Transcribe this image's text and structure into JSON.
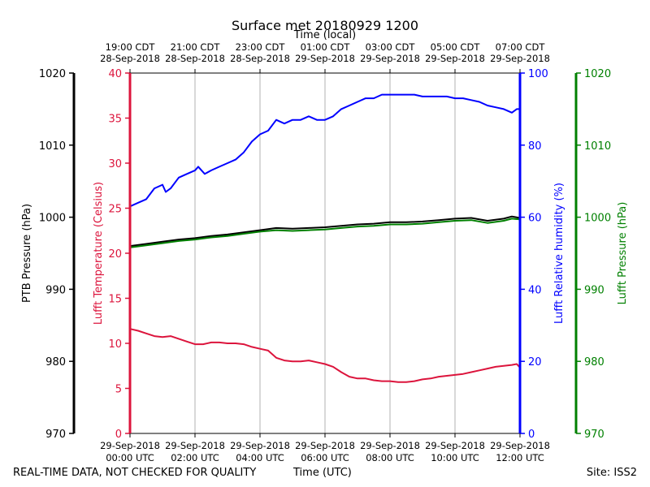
{
  "chart_data": {
    "type": "line",
    "title": "Surface met 20180929 1200",
    "top_axis_label": "Time (local)",
    "top_ticks": [
      {
        "l1": "19:00 CDT",
        "l2": "28-Sep-2018"
      },
      {
        "l1": "21:00 CDT",
        "l2": "28-Sep-2018"
      },
      {
        "l1": "23:00 CDT",
        "l2": "28-Sep-2018"
      },
      {
        "l1": "01:00 CDT",
        "l2": "29-Sep-2018"
      },
      {
        "l1": "03:00 CDT",
        "l2": "29-Sep-2018"
      },
      {
        "l1": "05:00 CDT",
        "l2": "29-Sep-2018"
      },
      {
        "l1": "07:00 CDT",
        "l2": "29-Sep-2018"
      }
    ],
    "bottom_ticks": [
      {
        "l1": "29-Sep-2018",
        "l2": "00:00 UTC"
      },
      {
        "l1": "29-Sep-2018",
        "l2": "02:00 UTC"
      },
      {
        "l1": "29-Sep-2018",
        "l2": "04:00 UTC"
      },
      {
        "l1": "29-Sep-2018",
        "l2": "06:00 UTC"
      },
      {
        "l1": "29-Sep-2018",
        "l2": "08:00 UTC"
      },
      {
        "l1": "29-Sep-2018",
        "l2": "10:00 UTC"
      },
      {
        "l1": "29-Sep-2018",
        "l2": "12:00 UTC"
      }
    ],
    "xlim": [
      0,
      12
    ],
    "axes": {
      "ptb": {
        "label": "PTB Pressure (hPa)",
        "color": "#000000",
        "lim": [
          970,
          1020
        ],
        "ticks": [
          970,
          980,
          990,
          1000,
          1010,
          1020
        ]
      },
      "temp": {
        "label": "Lufft Temperature (Celsius)",
        "color": "#dc143c",
        "lim": [
          0,
          40
        ],
        "ticks": [
          0,
          5,
          10,
          15,
          20,
          25,
          30,
          35,
          40
        ]
      },
      "rh": {
        "label": "Lufft Relative humidity (%)",
        "color": "#0000ff",
        "lim": [
          0,
          100
        ],
        "ticks": [
          0,
          20,
          40,
          60,
          80,
          100
        ]
      },
      "lp": {
        "label": "Lufft Pressure (hPa)",
        "color": "#008000",
        "lim": [
          970,
          1020
        ],
        "ticks": [
          970,
          980,
          990,
          1000,
          1010,
          1020
        ]
      }
    },
    "series": [
      {
        "name": "Lufft Relative humidity",
        "axis": "rh",
        "color": "#0000ff",
        "x": [
          0,
          0.25,
          0.5,
          0.75,
          1.0,
          1.1,
          1.25,
          1.5,
          1.75,
          2.0,
          2.1,
          2.3,
          2.5,
          2.75,
          3.0,
          3.25,
          3.5,
          3.75,
          4.0,
          4.25,
          4.5,
          4.75,
          5.0,
          5.25,
          5.5,
          5.75,
          6.0,
          6.25,
          6.5,
          6.75,
          7.0,
          7.25,
          7.5,
          7.75,
          8.0,
          8.25,
          8.5,
          8.75,
          9.0,
          9.25,
          9.5,
          9.75,
          10.0,
          10.25,
          10.5,
          10.75,
          11.0,
          11.25,
          11.5,
          11.75,
          11.9,
          12.0
        ],
        "values": [
          63,
          64,
          65,
          68,
          69,
          67,
          68,
          71,
          72,
          73,
          74,
          72,
          73,
          74,
          75,
          76,
          78,
          81,
          83,
          84,
          87,
          86,
          87,
          87,
          88,
          87,
          87,
          88,
          90,
          91,
          92,
          93,
          93,
          94,
          94,
          94,
          94,
          94,
          93.5,
          93.5,
          93.5,
          93.5,
          93,
          93,
          92.5,
          92,
          91,
          90.5,
          90,
          89,
          90,
          90
        ]
      },
      {
        "name": "PTB Pressure",
        "axis": "ptb",
        "color": "#000000",
        "x": [
          0,
          0.5,
          1.0,
          1.5,
          2.0,
          2.5,
          3.0,
          3.5,
          4.0,
          4.5,
          5.0,
          5.5,
          6.0,
          6.5,
          7.0,
          7.5,
          8.0,
          8.5,
          9.0,
          9.5,
          10.0,
          10.5,
          11.0,
          11.5,
          11.75,
          12.0
        ],
        "values": [
          996.0,
          996.3,
          996.6,
          996.9,
          997.1,
          997.4,
          997.6,
          997.9,
          998.2,
          998.5,
          998.4,
          998.5,
          998.6,
          998.8,
          999.0,
          999.1,
          999.3,
          999.3,
          999.4,
          999.6,
          999.8,
          999.9,
          999.5,
          999.8,
          1000.1,
          999.9
        ]
      },
      {
        "name": "Lufft Pressure",
        "axis": "lp",
        "color": "#008000",
        "x": [
          0,
          0.5,
          1.0,
          1.5,
          2.0,
          2.5,
          3.0,
          3.5,
          4.0,
          4.5,
          5.0,
          5.5,
          6.0,
          6.5,
          7.0,
          7.5,
          8.0,
          8.5,
          9.0,
          9.5,
          10.0,
          10.5,
          11.0,
          11.5,
          11.75,
          12.0
        ],
        "values": [
          995.8,
          996.1,
          996.4,
          996.7,
          996.9,
          997.2,
          997.4,
          997.7,
          998.0,
          998.2,
          998.1,
          998.2,
          998.3,
          998.5,
          998.7,
          998.8,
          999.0,
          999.0,
          999.1,
          999.3,
          999.5,
          999.6,
          999.2,
          999.5,
          999.8,
          999.7
        ]
      },
      {
        "name": "Lufft Temperature",
        "axis": "temp",
        "color": "#dc143c",
        "x": [
          0,
          0.25,
          0.5,
          0.75,
          1.0,
          1.25,
          1.5,
          1.75,
          2.0,
          2.25,
          2.5,
          2.75,
          3.0,
          3.25,
          3.5,
          3.75,
          4.0,
          4.25,
          4.5,
          4.75,
          5.0,
          5.25,
          5.5,
          5.75,
          6.0,
          6.25,
          6.5,
          6.75,
          7.0,
          7.25,
          7.5,
          7.75,
          8.0,
          8.25,
          8.5,
          8.75,
          9.0,
          9.25,
          9.5,
          9.75,
          10.0,
          10.25,
          10.5,
          10.75,
          11.0,
          11.25,
          11.5,
          11.75,
          11.9,
          12.0
        ],
        "values": [
          11.6,
          11.4,
          11.1,
          10.8,
          10.7,
          10.8,
          10.5,
          10.2,
          9.9,
          9.9,
          10.1,
          10.1,
          10.0,
          10.0,
          9.9,
          9.6,
          9.4,
          9.2,
          8.4,
          8.1,
          8.0,
          8.0,
          8.1,
          7.9,
          7.7,
          7.4,
          6.8,
          6.3,
          6.1,
          6.1,
          5.9,
          5.8,
          5.8,
          5.7,
          5.7,
          5.8,
          6.0,
          6.1,
          6.3,
          6.4,
          6.5,
          6.6,
          6.8,
          7.0,
          7.2,
          7.4,
          7.5,
          7.6,
          7.7,
          7.3
        ]
      }
    ]
  },
  "footer": {
    "disclaimer": "REAL-TIME DATA, NOT CHECKED FOR QUALITY",
    "xlabel": "Time (UTC)",
    "site": "Site: ISS2"
  }
}
